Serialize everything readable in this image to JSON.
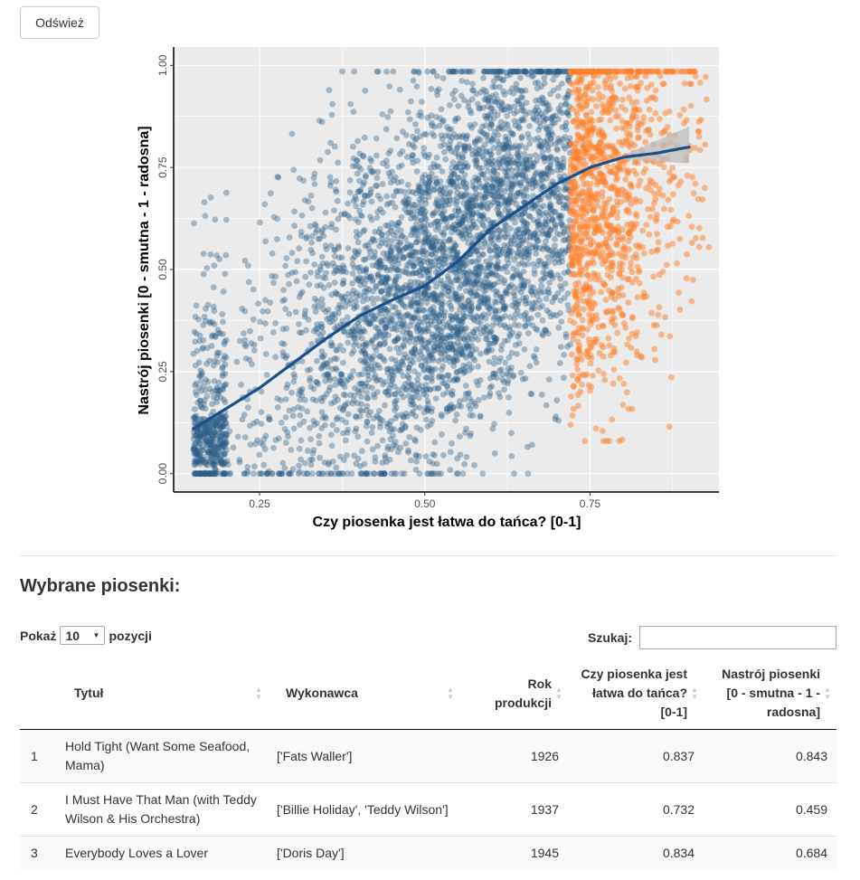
{
  "refresh_label": "Odśwież",
  "chart_data": {
    "type": "scatter",
    "xlabel": "Czy piosenka jest łatwa do tańca? [0-1]",
    "ylabel": "Nastrój piosenki [0 - smutna - 1 - radosna]",
    "xlim": [
      0.12,
      0.945
    ],
    "ylim": [
      -0.045,
      1.045
    ],
    "x_ticks": [
      0.25,
      0.5,
      0.75
    ],
    "x_tick_labels": [
      "0.25",
      "0.50",
      "0.75"
    ],
    "y_ticks": [
      0.0,
      0.25,
      0.5,
      0.75,
      1.0
    ],
    "y_tick_labels": [
      "0.00",
      "0.25",
      "0.50",
      "0.75",
      "1.00"
    ],
    "grid": true,
    "legend": "none",
    "colors": {
      "panel": "#ebebeb",
      "grid": "#ffffff",
      "points": "#2c5f8a",
      "selected": "#ff7f2a",
      "smooth": "#1a4f8b",
      "band": "#bdbdbd"
    },
    "points_description_counts": {
      "all": 5000,
      "selected": 400
    },
    "selected_rule": "danceability > 0.72 and valence > 0.05",
    "smooth": {
      "x": [
        0.15,
        0.2,
        0.25,
        0.3,
        0.35,
        0.4,
        0.45,
        0.5,
        0.55,
        0.6,
        0.65,
        0.7,
        0.75,
        0.8,
        0.85,
        0.9
      ],
      "y": [
        0.11,
        0.16,
        0.21,
        0.27,
        0.33,
        0.385,
        0.425,
        0.46,
        0.52,
        0.6,
        0.655,
        0.71,
        0.75,
        0.775,
        0.785,
        0.8
      ],
      "band_upper_end": 0.85,
      "band_lower_end": 0.76
    }
  },
  "table_section": {
    "title": "Wybrane piosenki:",
    "length_prefix": "Pokaż",
    "length_value": "10",
    "length_suffix": "pozycji",
    "search_label": "Szukaj:",
    "search_value": "",
    "columns": [
      {
        "label": ""
      },
      {
        "label": "Tytuł"
      },
      {
        "label": "Wykonawca"
      },
      {
        "label": "Rok produkcji"
      },
      {
        "label": "Czy piosenka jest łatwa do tańca? [0-1]"
      },
      {
        "label": "Nastrój piosenki [0 - smutna - 1 - radosna]"
      }
    ],
    "rows": [
      {
        "n": "1",
        "title": "Hold Tight (Want Some Seafood, Mama)",
        "artist": "['Fats Waller']",
        "year": "1926",
        "dance": "0.837",
        "mood": "0.843"
      },
      {
        "n": "2",
        "title": "I Must Have That Man (with Teddy Wilson & His Orchestra)",
        "artist": "['Billie Holiday', 'Teddy Wilson']",
        "year": "1937",
        "dance": "0.732",
        "mood": "0.459"
      },
      {
        "n": "3",
        "title": "Everybody Loves a Lover",
        "artist": "['Doris Day']",
        "year": "1945",
        "dance": "0.834",
        "mood": "0.684"
      }
    ]
  }
}
